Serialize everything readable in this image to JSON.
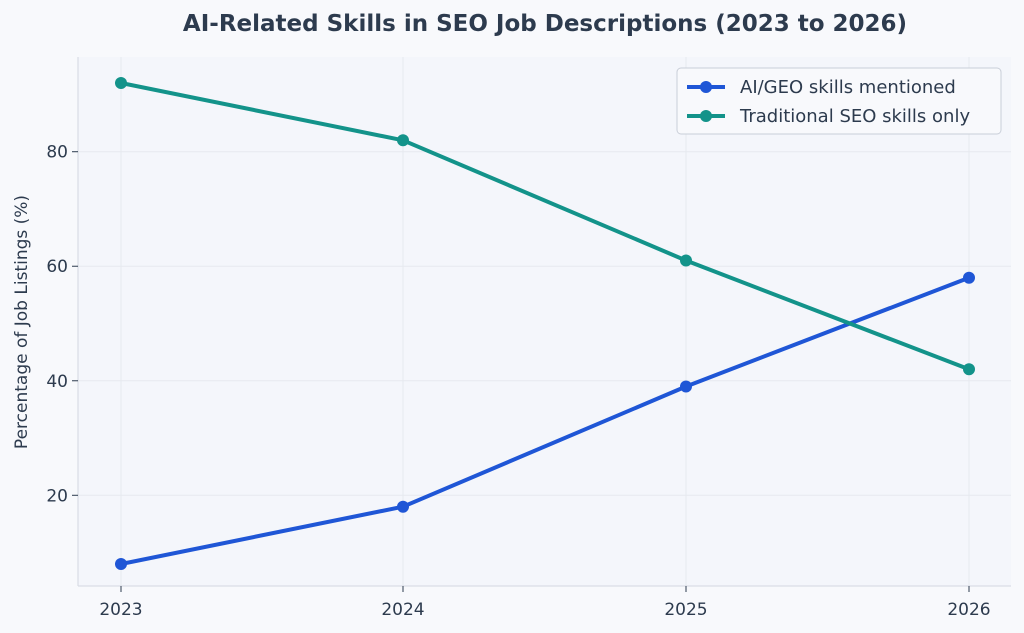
{
  "chart_data": {
    "type": "line",
    "title": "AI-Related Skills in SEO Job Descriptions (2023 to 2026)",
    "xlabel": "",
    "ylabel": "Percentage of Job Listings (%)",
    "x": [
      "2023",
      "2024",
      "2025",
      "2026"
    ],
    "yticks": [
      "20",
      "40",
      "60",
      "80"
    ],
    "ylim": [
      5,
      95
    ],
    "grid": true,
    "legend_position": "top-right",
    "series": [
      {
        "name": "AI/GEO skills mentioned",
        "values": [
          8,
          18,
          39,
          58
        ],
        "color": "#1f56d6"
      },
      {
        "name": "Traditional SEO skills only",
        "values": [
          92,
          82,
          61,
          42
        ],
        "color": "#13938a"
      }
    ]
  }
}
